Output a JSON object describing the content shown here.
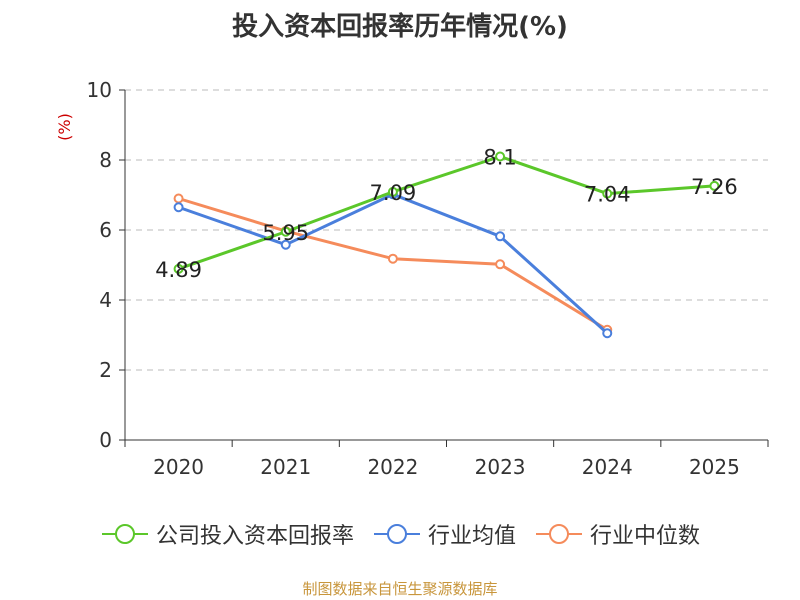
{
  "chart_data": {
    "type": "line",
    "title": "投入资本回报率历年情况(%)",
    "ylabel": "(%)",
    "xlabel": "",
    "categories": [
      "2020",
      "2021",
      "2022",
      "2023",
      "2024",
      "2025"
    ],
    "ylim": [
      0,
      10
    ],
    "yticks": [
      0,
      2,
      4,
      6,
      8,
      10
    ],
    "grid": true,
    "legend_position": "bottom",
    "series": [
      {
        "name": "公司投入资本回报率",
        "color": "#5bc72a",
        "values": [
          4.89,
          5.95,
          7.09,
          8.1,
          7.04,
          7.26
        ],
        "labels": [
          "4.89",
          "5.95",
          "7.09",
          "8.1",
          "7.04",
          "7.26"
        ],
        "show_labels": true
      },
      {
        "name": "行业均值",
        "color": "#4a7fdc",
        "values": [
          6.65,
          5.58,
          7.02,
          5.82,
          3.05,
          null
        ],
        "show_labels": false
      },
      {
        "name": "行业中位数",
        "color": "#f58b5b",
        "values": [
          6.9,
          5.97,
          5.18,
          5.02,
          3.15,
          null
        ],
        "show_labels": false
      }
    ]
  },
  "colors": {
    "title": "#333333",
    "axis": "#333333",
    "grid": "#bbbbbb",
    "ylabel": "#cc0000",
    "footer": "#c8963c"
  },
  "footer": {
    "source": "制图数据来自恒生聚源数据库"
  }
}
